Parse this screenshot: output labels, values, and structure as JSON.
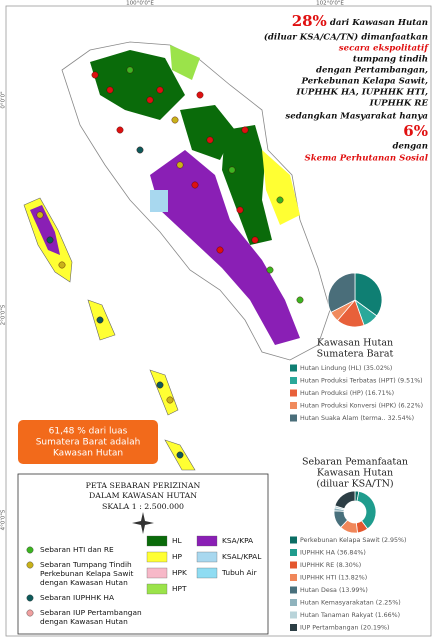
{
  "map": {
    "coords_top": [
      "100°0'0\"E",
      "102°0'0\"E"
    ],
    "coords_left": [
      "0°0'0\"",
      "2°0'0\"S",
      "4°0'0\"S"
    ],
    "headline": {
      "pct_main": "28%",
      "line1": "dari Kawasan Hutan",
      "line2": "(diluar KSA/CA/TN) dimanfaatkan",
      "line3": "secara ekspolitatif",
      "line4": "tumpang tindih",
      "line5": "dengan Pertambangan,",
      "line6": "Perkebunan Kelapa Sawit,",
      "line7": "IUPHHK HA, IUPHHK HTI,",
      "line8": "IUPHHK RE",
      "line9": "sedangkan Masyarakat hanya",
      "pct_social": "6%",
      "line10": "dengan",
      "line11": "Skema Perhutanan Sosial"
    },
    "callout": [
      "61,48 % dari luas",
      "Sumatera Barat adalah",
      "Kawasan Hutan"
    ],
    "forest_area": {
      "title": [
        "Kawasan Hutan",
        "Sumatera Barat"
      ],
      "slices": [
        {
          "name": "Hutan Lindung (HL)",
          "value": 35.02,
          "value_label": "(35.02%)",
          "color": "#0f7f73"
        },
        {
          "name": "Hutan Produksi Terbatas (HPT)",
          "value": 9.51,
          "value_label": "(9.51%)",
          "color": "#2aa89a"
        },
        {
          "name": "Hutan Produksi (HP)",
          "value": 16.71,
          "value_label": "(16.71%)",
          "color": "#e8603a"
        },
        {
          "name": "Hutan Produksi Konversi (HPK)",
          "value": 6.22,
          "value_label": "(6.22%)",
          "color": "#f08a5d"
        },
        {
          "name": "Hutan Suaka Alam (terma..",
          "value": 32.54,
          "value_label": "32.54%)",
          "color": "#4a6e7a"
        }
      ]
    },
    "utilization": {
      "title": [
        "Sebaran Pemanfaatan",
        "Kawasan Hutan",
        "(diluar KSA/TN)"
      ],
      "slices": [
        {
          "name": "Perkebunan Kelapa Sawit",
          "value": 2.95,
          "value_label": "(2.95%)",
          "color": "#0b6e64"
        },
        {
          "name": "IUPHHK HA",
          "value": 36.84,
          "value_label": "(36.84%)",
          "color": "#1f9c8d"
        },
        {
          "name": "IUPHHK RE",
          "value": 8.3,
          "value_label": "(8.30%)",
          "color": "#e4572e"
        },
        {
          "name": "IUPHHK HTI",
          "value": 13.82,
          "value_label": "(13.82%)",
          "color": "#f0875a"
        },
        {
          "name": "Hutan Desa",
          "value": 13.99,
          "value_label": "(13.99%)",
          "color": "#48707c"
        },
        {
          "name": "Hutan Kemasyarakatan",
          "value": 2.25,
          "value_label": "(2.25%)",
          "color": "#8fb3bd"
        },
        {
          "name": "Hutan Tanaman Rakyat",
          "value": 1.66,
          "value_label": "(1.66%)",
          "color": "#b9d4da"
        },
        {
          "name": "IUP Pertambangan",
          "value": 20.19,
          "value_label": "(20.19%)",
          "color": "#2c3e45"
        }
      ]
    },
    "legend_box": {
      "title": [
        "PETA SEBARAN PERIZINAN",
        "DALAM KAWASAN HUTAN"
      ],
      "scale": "SKALA 1 : 2.500.000",
      "points": [
        {
          "label": [
            "Sebaran HTI dan RE"
          ],
          "color": "#3cb521"
        },
        {
          "label": [
            "Sebaran Tumpang Tindih",
            "Perkebunan Kelapa Sawit",
            "dengan Kawasan Hutan"
          ],
          "color": "#c9b21a"
        },
        {
          "label": [
            "Sebaran IUPHHK HA"
          ],
          "color": "#0e5a5a"
        },
        {
          "label": [
            "Sebaran IUP Pertambangan",
            "dengan Kawasan Hutan"
          ],
          "color": "#f0a0a0"
        }
      ],
      "zones": [
        {
          "label": "HL",
          "color": "#0a6b0a"
        },
        {
          "label": "HP",
          "color": "#ffff33"
        },
        {
          "label": "HPK",
          "color": "#f7b8c8"
        },
        {
          "label": "HPT",
          "color": "#9be34a"
        },
        {
          "label": "KSA/KPA",
          "color": "#8a1fb5"
        },
        {
          "label": "KSAL/KPAL",
          "color": "#a8d8ef"
        },
        {
          "label": "Tubuh Air",
          "color": "#8fdcf2"
        }
      ]
    }
  }
}
